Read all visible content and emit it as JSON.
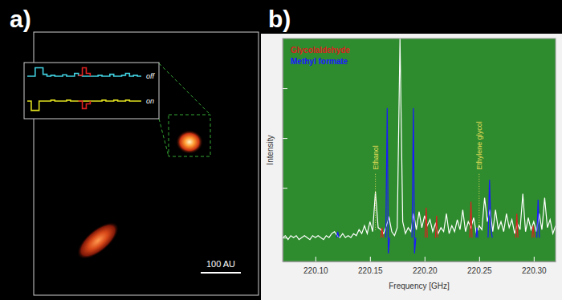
{
  "panel_labels": [
    "a)",
    "b)"
  ],
  "image_panel": {
    "scale_bar_label": "100 AU",
    "inset": {
      "ylim": [
        -1.2,
        1.2
      ],
      "spectra": [
        {
          "label": "off",
          "color": "#40d0e0",
          "feature_color": "#e02020",
          "values": [
            0,
            0,
            0.9,
            0.9,
            0.2,
            0,
            0.1,
            0,
            0,
            0.15,
            0,
            0,
            0.3,
            0.1,
            0,
            0,
            0,
            0,
            0.1,
            0,
            0,
            0.2,
            0,
            0,
            0.1,
            0.3,
            0,
            0.1,
            0,
            0
          ],
          "feature_values": [
            null,
            null,
            null,
            null,
            null,
            null,
            null,
            null,
            null,
            null,
            null,
            null,
            null,
            0.1,
            0.9,
            0.3,
            0,
            null,
            null,
            null,
            null,
            null,
            null,
            null,
            null,
            null,
            null,
            null,
            null,
            null
          ]
        },
        {
          "label": "on",
          "color": "#e0e020",
          "feature_color": "#e02020",
          "values": [
            0,
            -1,
            -1,
            0,
            0,
            0,
            0.1,
            0,
            0,
            0,
            0.1,
            0,
            0,
            0,
            0,
            0,
            0,
            0,
            0,
            0.1,
            0,
            0,
            0.1,
            0,
            0,
            0.1,
            0,
            0,
            0,
            0
          ],
          "feature_values": [
            null,
            null,
            null,
            null,
            null,
            null,
            null,
            null,
            null,
            null,
            null,
            null,
            null,
            0,
            -0.8,
            -0.3,
            0,
            null,
            null,
            null,
            null,
            null,
            null,
            null,
            null,
            null,
            null,
            null,
            null,
            null
          ]
        }
      ]
    }
  },
  "chart_data": {
    "type": "line",
    "x_label": "Frequency [GHz]",
    "y_label": "Intensity",
    "xlim": [
      220.07,
      220.32
    ],
    "ylim": [
      -0.12,
      1
    ],
    "xticks": [
      {
        "value": 220.1,
        "label": "220.10"
      },
      220.15,
      {
        "value": 220.2,
        "label": "220.20"
      },
      220.25,
      {
        "value": 220.3,
        "label": "220.30"
      }
    ],
    "yticks": [
      0,
      0.25,
      0.5,
      0.75
    ],
    "tick_labels": "x",
    "legend": "upper left",
    "annotations": [
      {
        "text": "Ethanol",
        "x": 220.155
      },
      {
        "text": "Ethylene glycol",
        "x": 220.25
      }
    ],
    "series": [
      {
        "color": "#ffffff",
        "x": [
          220.07,
          220.0725,
          220.075,
          220.0775,
          220.08,
          220.0825,
          220.085,
          220.0875,
          220.09,
          220.0925,
          220.095,
          220.0975,
          220.1,
          220.1025,
          220.105,
          220.1075,
          220.11,
          220.1125,
          220.115,
          220.1175,
          220.12,
          220.1225,
          220.125,
          220.1275,
          220.13,
          220.1325,
          220.135,
          220.1375,
          220.14,
          220.1425,
          220.145,
          220.1475,
          220.15,
          220.1525,
          220.155,
          220.1575,
          220.16,
          220.1625,
          220.165,
          220.1675,
          220.17,
          220.1725,
          220.175,
          220.1775,
          220.18,
          220.1825,
          220.185,
          220.1875,
          220.19,
          220.1925,
          220.195,
          220.1975,
          220.2,
          220.2025,
          220.205,
          220.2075,
          220.21,
          220.2125,
          220.215,
          220.2175,
          220.22,
          220.2225,
          220.225,
          220.2275,
          220.23,
          220.2325,
          220.235,
          220.2375,
          220.24,
          220.2425,
          220.245,
          220.2475,
          220.25,
          220.2525,
          220.255,
          220.2575,
          220.26,
          220.2625,
          220.265,
          220.2675,
          220.27,
          220.2725,
          220.275,
          220.2775,
          220.28,
          220.2825,
          220.285,
          220.2875,
          220.29,
          220.2925,
          220.295,
          220.2975,
          220.3,
          220.3025,
          220.305,
          220.3075,
          220.31,
          220.3125,
          220.315,
          220.3175,
          220.32
        ],
        "values": [
          0,
          0.01,
          -0.01,
          0.01,
          0,
          0.01,
          -0.01,
          0,
          0.01,
          0,
          -0.01,
          0.01,
          0,
          0.01,
          0,
          -0.01,
          0.01,
          0,
          0.02,
          0.03,
          0.01,
          0,
          0.02,
          0,
          0.01,
          0,
          0.02,
          0.01,
          0.04,
          0.02,
          0.06,
          0.02,
          0.08,
          0.03,
          0.23,
          0.05,
          0.04,
          0.02,
          0.06,
          0.1,
          0.03,
          0.01,
          0.05,
          1.0,
          0.08,
          0.02,
          0.05,
          0.03,
          0.12,
          0.04,
          0.13,
          0.05,
          0.11,
          0.06,
          0.09,
          0.03,
          0.07,
          0.02,
          0.05,
          0.03,
          0.12,
          0.02,
          0.06,
          0.03,
          0.09,
          0.04,
          0.14,
          0.03,
          0.08,
          0.05,
          0.1,
          0.02,
          0.06,
          0.04,
          0.2,
          0.08,
          0.14,
          0.03,
          0.14,
          0.04,
          0.08,
          0.03,
          0.12,
          0.05,
          0.09,
          0.02,
          0.07,
          0.04,
          0.22,
          0.03,
          0.1,
          0.04,
          0.08,
          0.03,
          0.12,
          0.04,
          0.2,
          0.05,
          0.09,
          0.02,
          0.06
        ]
      },
      {
        "name": "Glycolaldehyde",
        "color": "#dd2020",
        "x": [
          220.16,
          220.161,
          220.162,
          null,
          220.2005,
          220.2015,
          220.2025,
          null,
          220.21,
          220.211,
          220.212,
          null,
          220.2415,
          220.2425,
          220.2435,
          null,
          220.2835,
          220.2845,
          220.2855,
          null,
          220.2985,
          220.2995,
          220.3005
        ],
        "values": [
          0,
          0.05,
          0,
          null,
          0,
          0.15,
          0,
          null,
          0,
          0.11,
          0,
          null,
          0,
          0.18,
          0,
          null,
          0,
          0.12,
          0,
          null,
          0,
          0.06,
          0
        ]
      },
      {
        "name": "Methyl formate",
        "color": "#1a1aff",
        "x": [
          220.1195,
          220.1205,
          220.1215,
          null,
          220.1645,
          220.1658,
          220.1668,
          220.168,
          null,
          220.1885,
          220.1898,
          220.1908,
          220.192,
          null,
          220.2472,
          220.248,
          220.2488,
          null,
          220.2582,
          220.2595,
          220.2608,
          220.262,
          null,
          220.3028,
          220.304,
          220.3052
        ],
        "values": [
          0,
          0.03,
          0,
          null,
          0,
          0.65,
          -0.08,
          0,
          null,
          0,
          0.65,
          -0.08,
          0,
          null,
          0,
          0.05,
          0,
          null,
          0,
          0.29,
          0.05,
          0,
          null,
          0,
          0.19,
          0
        ]
      }
    ]
  }
}
